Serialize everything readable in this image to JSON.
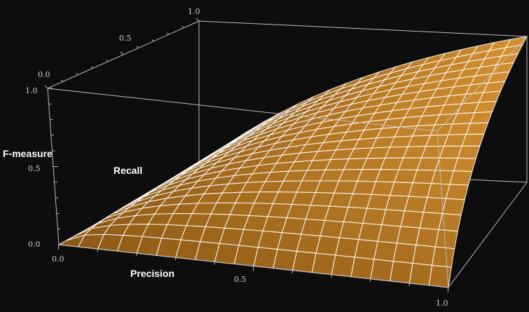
{
  "chart_data": {
    "type": "surface3d",
    "function": "F = 2*P*R / (P + R)",
    "x_label": "Precision",
    "y_label": "Recall",
    "z_label": "F-measure",
    "x_range": [
      0,
      1
    ],
    "y_range": [
      0,
      1
    ],
    "z_range": [
      0,
      1
    ],
    "mesh": 20,
    "x_ticks": [
      "0.0",
      "0.5",
      "1.0"
    ],
    "y_ticks": [
      "0.0",
      "0.5",
      "1.0"
    ],
    "z_ticks": [
      "0.0",
      "0.5",
      "1.0"
    ],
    "colors": {
      "background": "#0d0d0d",
      "surface_light": "#f0a43a",
      "surface_dark": "#6a3f08",
      "mesh": "#ffffff",
      "box": "#bdbdbd"
    }
  }
}
